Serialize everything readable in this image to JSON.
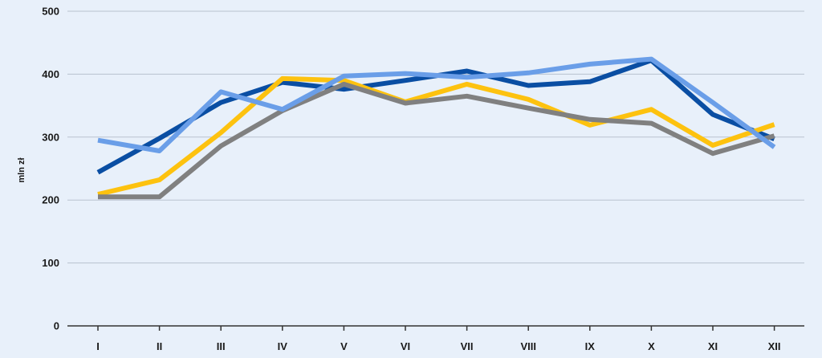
{
  "chart_data": {
    "type": "line",
    "title": "",
    "xlabel": "",
    "ylabel": "mln zł",
    "ylim": [
      0,
      500
    ],
    "yticks": [
      0,
      100,
      200,
      300,
      400,
      500
    ],
    "grid": true,
    "categories": [
      "I",
      "II",
      "III",
      "IV",
      "V",
      "VI",
      "VII",
      "VIII",
      "IX",
      "X",
      "XI",
      "XII"
    ],
    "series": [
      {
        "color": "#0a4ea3",
        "values": [
          244,
          298,
          355,
          387,
          376,
          390,
          405,
          382,
          388,
          422,
          336,
          297
        ]
      },
      {
        "color": "#fdc20f",
        "values": [
          209,
          232,
          307,
          393,
          390,
          356,
          384,
          360,
          319,
          344,
          287,
          320
        ]
      },
      {
        "color": "#808080",
        "values": [
          205,
          205,
          286,
          342,
          384,
          354,
          365,
          346,
          328,
          322,
          274,
          302
        ]
      },
      {
        "color": "#6a9ee8",
        "values": [
          295,
          278,
          372,
          344,
          397,
          401,
          395,
          402,
          416,
          424,
          355,
          284
        ]
      }
    ]
  }
}
